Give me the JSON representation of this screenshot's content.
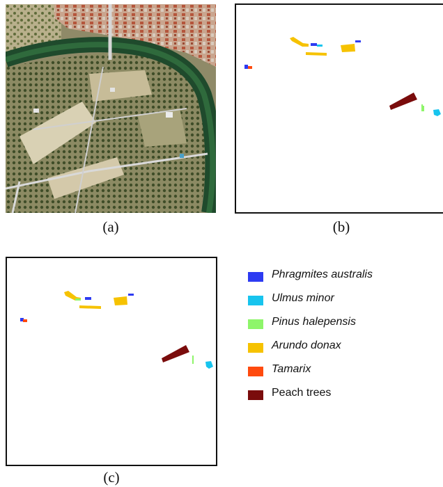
{
  "captions": {
    "a": "(a)",
    "b": "(b)",
    "c": "(c)"
  },
  "colors": {
    "phragmites": "#2d3bf2",
    "ulmus": "#17c4ee",
    "pinus": "#8ef56a",
    "arundo": "#f6c200",
    "tamarix": "#ff4a0e",
    "peach": "#7a0c0c"
  },
  "legend": [
    {
      "label": "Phragmites australis",
      "color": "#2d3bf2",
      "italic": true
    },
    {
      "label": "Ulmus minor",
      "color": "#17c4ee",
      "italic": true
    },
    {
      "label": "Pinus halepensis",
      "color": "#8ef56a",
      "italic": true
    },
    {
      "label": "Arundo donax",
      "color": "#f6c200",
      "italic": true
    },
    {
      "label": "Tamarix",
      "color": "#ff4a0e",
      "italic": true
    },
    {
      "label": "Peach trees",
      "color": "#7a0c0c",
      "italic": false
    }
  ],
  "icons": {
    "aerial": "satellite-image-icon",
    "map_b": "classification-map-icon",
    "map_c": "classification-map-icon"
  }
}
